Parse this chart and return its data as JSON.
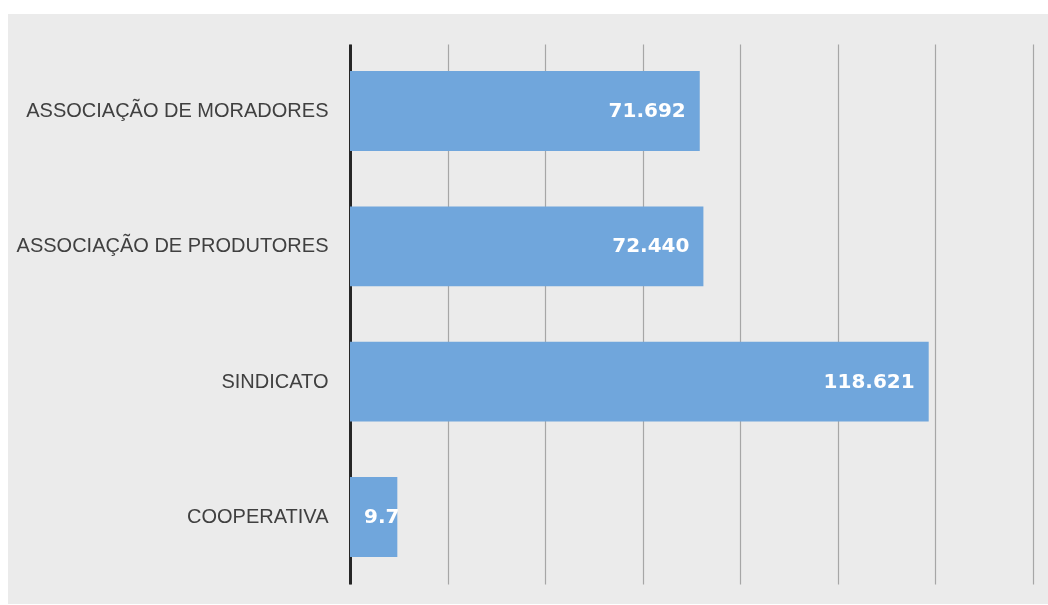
{
  "chart_data": {
    "type": "bar",
    "orientation": "horizontal",
    "categories": [
      "ASSOCIAÇÃO DE MORADORES",
      "ASSOCIAÇÃO DE PRODUTORES",
      "SINDICATO",
      "COOPERATIVA"
    ],
    "values": [
      71.692,
      72.44,
      118.621,
      9.7
    ],
    "value_labels": [
      "71.692",
      "72.440",
      "118.621",
      "9.7"
    ],
    "color": "#70a6dc",
    "xlim": [
      0,
      140
    ],
    "xticks": [
      {
        "value": 0,
        "label": null
      },
      {
        "value": 20,
        "label": null
      },
      {
        "value": 40,
        "label": null
      },
      {
        "value": 60,
        "label": null
      },
      {
        "value": 80,
        "label": null
      },
      {
        "value": 100,
        "label": null
      },
      {
        "value": 120,
        "label": null
      },
      {
        "value": 140,
        "label": null
      }
    ],
    "grid": "x",
    "tick_labels": "y"
  }
}
